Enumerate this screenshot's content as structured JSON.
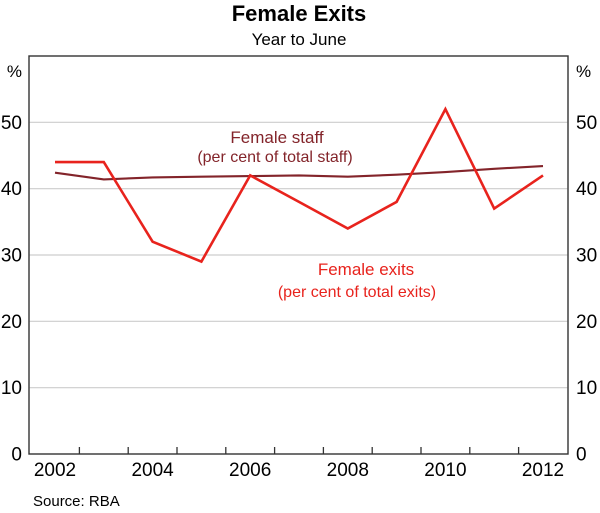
{
  "header": {
    "title": "Female Exits",
    "subtitle": "Year to June"
  },
  "footer": {
    "source": "Source: RBA"
  },
  "axes": {
    "y_unit_label_left": "%",
    "y_unit_label_right": "%",
    "y_ticks": [
      0,
      10,
      20,
      30,
      40,
      50
    ],
    "y_max": 60,
    "x_labeled_ticks": [
      2002,
      2004,
      2006,
      2008,
      2010,
      2012
    ],
    "x_minor_ticks": [
      2002.5,
      2003.5,
      2004.5,
      2005.5,
      2006.5,
      2007.5,
      2008.5,
      2009.5,
      2010.5,
      2011.5
    ]
  },
  "colors": {
    "exits_red": "#e8231d",
    "staff_dark_red": "#83242a",
    "gridline": "#cdcdcd",
    "frame": "#333333",
    "text": "#000000"
  },
  "chart_data": {
    "type": "line",
    "title": "Female Exits",
    "subtitle": "Year to June",
    "x": [
      2002,
      2003,
      2004,
      2005,
      2006,
      2007,
      2008,
      2009,
      2010,
      2011,
      2012
    ],
    "series": [
      {
        "name": "Female staff",
        "sublabel": "(per cent of total staff)",
        "color": "#83242a",
        "values": [
          42.4,
          41.4,
          41.7,
          41.8,
          41.9,
          42.0,
          41.8,
          42.1,
          42.5,
          43.0,
          43.4
        ]
      },
      {
        "name": "Female exits",
        "sublabel": "(per cent of total exits)",
        "color": "#e8231d",
        "values": [
          44,
          44,
          32,
          29,
          42,
          38,
          34,
          38,
          52,
          37,
          42
        ]
      }
    ],
    "xlabel": "",
    "ylabel": "%",
    "ylim": [
      0,
      60
    ],
    "xlim": [
      2001.47,
      2012.51
    ],
    "grid": "horizontal",
    "legend_position": "inline-annotations",
    "source": "Source: RBA"
  }
}
